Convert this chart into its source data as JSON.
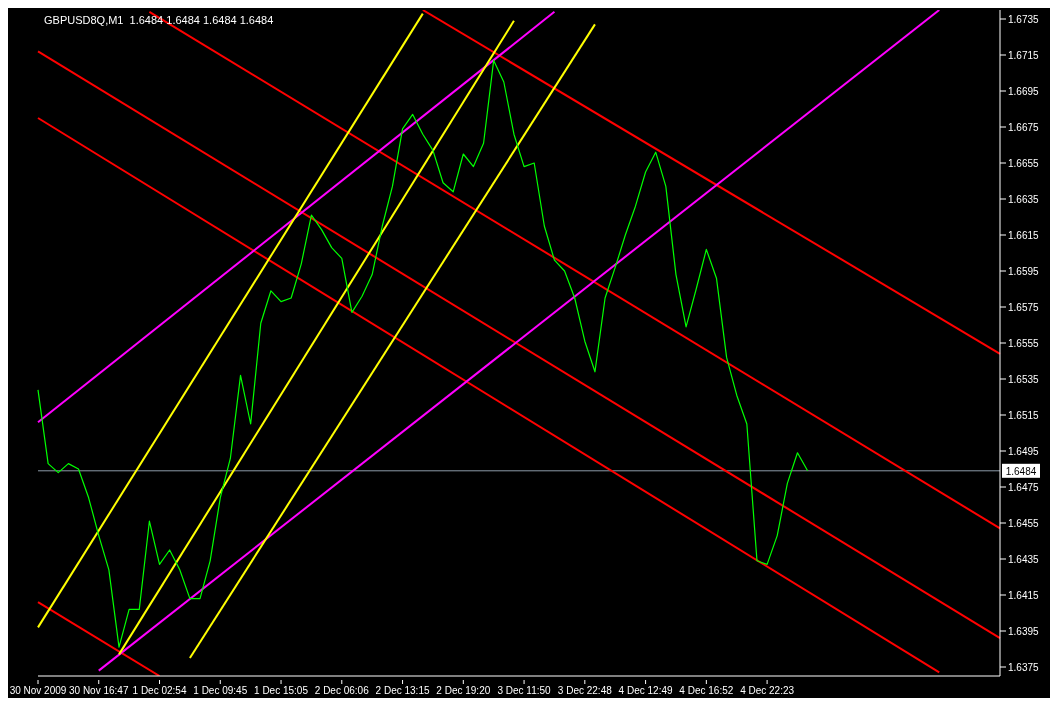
{
  "chart_data": {
    "type": "line",
    "title": "GBPUSD8Q,M1  1.6484 1.6484 1.6484 1.6484",
    "categories": [
      "30 Nov 2009",
      null,
      null,
      null,
      null,
      null,
      "30 Nov 16:47",
      null,
      null,
      null,
      null,
      null,
      "1 Dec 02:54",
      null,
      null,
      null,
      null,
      null,
      "1 Dec 09:45",
      null,
      null,
      null,
      null,
      null,
      "1 Dec 15:05",
      null,
      null,
      null,
      null,
      null,
      "2 Dec 06:06",
      null,
      null,
      null,
      null,
      null,
      "2 Dec 13:15",
      null,
      null,
      null,
      null,
      null,
      "2 Dec 19:20",
      null,
      null,
      null,
      null,
      null,
      "3 Dec 11:50",
      null,
      null,
      null,
      null,
      null,
      "3 Dec 22:48",
      null,
      null,
      null,
      null,
      null,
      "4 Dec 12:49",
      null,
      null,
      null,
      null,
      null,
      "4 Dec 16:52",
      null,
      null,
      null,
      null,
      null,
      "4 Dec 22:23",
      null,
      null,
      null,
      null,
      null,
      null,
      null,
      null,
      null,
      null,
      null,
      null,
      null,
      null,
      null,
      null,
      null,
      null,
      null,
      null,
      null,
      null,
      null
    ],
    "ylim": [
      1.637,
      1.674
    ],
    "yticks": [
      1.6375,
      1.6395,
      1.6415,
      1.6435,
      1.6455,
      1.6475,
      1.6495,
      1.6515,
      1.6535,
      1.6555,
      1.6575,
      1.6595,
      1.6615,
      1.6635,
      1.6655,
      1.6675,
      1.6695,
      1.6715,
      1.6735
    ],
    "ref_lines": [
      {
        "axis": "y",
        "value": 1.6484,
        "label": "1.6484",
        "color": "#8c9aa8"
      }
    ],
    "series": [
      {
        "type": "line",
        "color": "#00ff00",
        "values": [
          1.6529,
          1.6488,
          1.6483,
          1.6488,
          1.6485,
          1.6469,
          1.6448,
          1.6429,
          1.6386,
          1.6407,
          1.6407,
          1.6456,
          1.6432,
          1.644,
          1.6429,
          1.6413,
          1.6413,
          1.6434,
          1.6469,
          1.6491,
          1.6537,
          1.651,
          1.6566,
          1.6584,
          1.6578,
          1.658,
          1.6599,
          1.6626,
          1.6618,
          1.6608,
          1.6602,
          1.6572,
          1.6581,
          1.6593,
          1.662,
          1.6642,
          1.6674,
          1.6682,
          1.6671,
          1.6662,
          1.6644,
          1.6639,
          1.666,
          1.6653,
          1.6666,
          1.6712,
          1.67,
          1.6671,
          1.6653,
          1.6655,
          1.662,
          1.6601,
          1.6595,
          1.658,
          1.6556,
          1.6539,
          1.658,
          1.6597,
          1.6615,
          1.6631,
          1.665,
          1.6661,
          1.6642,
          1.6593,
          1.6564,
          1.6585,
          1.6607,
          1.6591,
          1.6547,
          1.6526,
          1.651,
          1.6434,
          1.6432,
          1.6448,
          1.6477,
          1.6494,
          1.6484,
          null,
          null,
          null,
          null,
          null,
          null,
          null,
          null,
          null,
          null,
          null,
          null,
          null,
          null,
          null,
          null,
          null,
          null,
          null
        ]
      },
      {
        "type": "line",
        "color": "#ff0000",
        "values": [
          null,
          null,
          null,
          null,
          null,
          null,
          null,
          null,
          null,
          null,
          null,
          null,
          null,
          null,
          null,
          null,
          null,
          null,
          null,
          null,
          null,
          null,
          null,
          null,
          null,
          null,
          null,
          null,
          null,
          null,
          null,
          null,
          null,
          null,
          null,
          null,
          null,
          null,
          1.674,
          null,
          null,
          null,
          null,
          null,
          null,
          null,
          null,
          null,
          null,
          null,
          null,
          null,
          null,
          null,
          null,
          null,
          null,
          null,
          null,
          null,
          null,
          null,
          null,
          null,
          null,
          null,
          null,
          null,
          null,
          null,
          null,
          null,
          null,
          null,
          null,
          null,
          null,
          null,
          null,
          null,
          null,
          null,
          null,
          null,
          null,
          null,
          null,
          null,
          null,
          null,
          null,
          null,
          null,
          null,
          null,
          1.6549
        ]
      },
      {
        "type": "line",
        "color": "#ff0000",
        "values": [
          null,
          null,
          null,
          null,
          null,
          null,
          null,
          null,
          null,
          null,
          null,
          1.6739,
          null,
          null,
          null,
          null,
          null,
          null,
          null,
          null,
          null,
          null,
          null,
          null,
          null,
          null,
          null,
          null,
          null,
          null,
          null,
          null,
          null,
          null,
          null,
          null,
          null,
          null,
          null,
          null,
          null,
          null,
          null,
          null,
          null,
          null,
          null,
          null,
          null,
          null,
          null,
          null,
          null,
          null,
          null,
          null,
          null,
          null,
          null,
          null,
          null,
          null,
          null,
          null,
          null,
          null,
          null,
          null,
          null,
          null,
          null,
          null,
          null,
          null,
          null,
          null,
          null,
          null,
          null,
          null,
          null,
          null,
          null,
          null,
          null,
          null,
          null,
          null,
          null,
          null,
          null,
          null,
          null,
          null,
          null,
          1.6452
        ]
      },
      {
        "type": "line",
        "color": "#ff0000",
        "values": [
          1.6717,
          null,
          null,
          null,
          null,
          null,
          null,
          null,
          null,
          null,
          null,
          null,
          null,
          null,
          null,
          null,
          null,
          null,
          null,
          null,
          null,
          null,
          null,
          null,
          null,
          null,
          null,
          null,
          null,
          null,
          null,
          null,
          null,
          null,
          null,
          null,
          null,
          null,
          null,
          null,
          null,
          null,
          null,
          null,
          null,
          null,
          null,
          null,
          null,
          null,
          null,
          null,
          null,
          null,
          null,
          null,
          null,
          null,
          null,
          null,
          null,
          null,
          null,
          null,
          null,
          null,
          null,
          null,
          null,
          null,
          null,
          null,
          null,
          null,
          null,
          null,
          null,
          null,
          null,
          null,
          null,
          null,
          null,
          null,
          null,
          null,
          null,
          null,
          null,
          null,
          null,
          null,
          null,
          null,
          null,
          1.6391
        ]
      },
      {
        "type": "line",
        "color": "#ff0000",
        "values": [
          1.668,
          null,
          null,
          null,
          null,
          null,
          null,
          null,
          null,
          null,
          null,
          null,
          null,
          null,
          null,
          null,
          null,
          null,
          null,
          null,
          null,
          null,
          null,
          null,
          null,
          null,
          null,
          null,
          null,
          null,
          null,
          null,
          null,
          null,
          null,
          null,
          null,
          null,
          null,
          null,
          null,
          null,
          null,
          null,
          null,
          null,
          null,
          null,
          null,
          null,
          null,
          null,
          null,
          null,
          null,
          null,
          null,
          null,
          null,
          null,
          null,
          null,
          null,
          null,
          null,
          null,
          null,
          null,
          null,
          null,
          null,
          null,
          null,
          null,
          null,
          null,
          null,
          null,
          null,
          null,
          null,
          null,
          null,
          null,
          null,
          null,
          null,
          null,
          null,
          1.6372,
          null,
          null,
          null,
          null,
          null,
          null
        ]
      },
      {
        "type": "line",
        "color": "#ff0000",
        "values": [
          1.6411,
          null,
          null,
          null,
          null,
          null,
          null,
          null,
          null,
          null,
          null,
          null,
          1.637,
          null,
          null,
          null,
          null,
          null,
          null,
          null,
          null,
          null,
          null,
          null,
          null,
          null,
          null,
          null,
          null,
          null,
          null,
          null,
          null,
          null,
          null,
          null,
          null,
          null,
          null,
          null,
          null,
          null,
          null,
          null,
          null,
          null,
          null,
          null,
          null,
          null,
          null,
          null,
          null,
          null,
          null,
          null,
          null,
          null,
          null,
          null,
          null,
          null,
          null,
          null,
          null,
          null,
          null,
          null,
          null,
          null,
          null,
          null,
          null,
          null,
          null,
          null,
          null,
          null,
          null,
          null,
          null,
          null,
          null,
          null,
          null,
          null,
          null,
          null,
          null,
          null,
          null,
          null,
          null,
          null,
          null,
          null
        ]
      },
      {
        "type": "line",
        "color": "#ff00ff",
        "values": [
          1.6511,
          null,
          null,
          null,
          null,
          null,
          null,
          null,
          null,
          null,
          null,
          null,
          null,
          null,
          null,
          null,
          null,
          null,
          null,
          null,
          null,
          null,
          null,
          null,
          null,
          null,
          null,
          null,
          null,
          null,
          null,
          null,
          null,
          null,
          null,
          null,
          null,
          null,
          null,
          null,
          null,
          null,
          null,
          null,
          null,
          null,
          null,
          null,
          null,
          null,
          null,
          1.6739,
          null,
          null,
          null,
          null,
          null,
          null,
          null,
          null,
          null,
          null,
          null,
          null,
          null,
          null,
          null,
          null,
          null,
          null,
          null,
          null,
          null,
          null,
          null,
          null,
          null,
          null,
          null,
          null,
          null,
          null,
          null,
          null,
          null,
          null,
          null,
          null,
          null,
          null,
          null,
          null,
          null,
          null,
          null,
          null
        ]
      },
      {
        "type": "line",
        "color": "#ff00ff",
        "values": [
          null,
          null,
          null,
          null,
          null,
          null,
          1.6373,
          null,
          null,
          null,
          null,
          null,
          null,
          null,
          null,
          null,
          null,
          null,
          null,
          null,
          null,
          null,
          null,
          null,
          null,
          null,
          null,
          null,
          null,
          null,
          null,
          null,
          null,
          null,
          null,
          null,
          null,
          null,
          null,
          null,
          null,
          null,
          null,
          null,
          null,
          null,
          null,
          null,
          null,
          null,
          null,
          null,
          null,
          null,
          null,
          null,
          null,
          null,
          null,
          null,
          null,
          null,
          null,
          null,
          null,
          null,
          null,
          null,
          null,
          null,
          null,
          null,
          null,
          null,
          null,
          null,
          null,
          null,
          null,
          null,
          null,
          null,
          null,
          null,
          null,
          null,
          null,
          null,
          null,
          1.674,
          null,
          null,
          null,
          null,
          null,
          null
        ]
      },
      {
        "type": "line",
        "color": "#ffff00",
        "values": [
          1.6397,
          null,
          null,
          null,
          null,
          null,
          null,
          null,
          null,
          null,
          null,
          null,
          null,
          null,
          null,
          null,
          null,
          null,
          null,
          null,
          null,
          null,
          null,
          null,
          null,
          null,
          null,
          null,
          null,
          null,
          null,
          null,
          null,
          null,
          null,
          null,
          null,
          null,
          1.6738,
          null,
          null,
          null,
          null,
          null,
          null,
          null,
          null,
          null,
          null,
          null,
          null,
          null,
          null,
          null,
          null,
          null,
          null,
          null,
          null,
          null,
          null,
          null,
          null,
          null,
          null,
          null,
          null,
          null,
          null,
          null,
          null,
          null,
          null,
          null,
          null,
          null,
          null,
          null,
          null,
          null,
          null,
          null,
          null,
          null,
          null,
          null,
          null,
          null,
          null,
          null,
          null,
          null,
          null,
          null,
          null,
          null
        ]
      },
      {
        "type": "line",
        "color": "#ffff00",
        "values": [
          null,
          null,
          null,
          null,
          null,
          null,
          null,
          null,
          1.6382,
          null,
          null,
          null,
          null,
          null,
          null,
          null,
          null,
          null,
          null,
          null,
          null,
          null,
          null,
          null,
          null,
          null,
          null,
          null,
          null,
          null,
          null,
          null,
          null,
          null,
          null,
          null,
          null,
          null,
          null,
          null,
          null,
          null,
          null,
          null,
          null,
          null,
          null,
          1.6734,
          null,
          null,
          null,
          null,
          null,
          null,
          null,
          null,
          null,
          null,
          null,
          null,
          null,
          null,
          null,
          null,
          null,
          null,
          null,
          null,
          null,
          null,
          null,
          null,
          null,
          null,
          null,
          null,
          null,
          null,
          null,
          null,
          null,
          null,
          null,
          null,
          null,
          null,
          null,
          null,
          null,
          null,
          null,
          null,
          null,
          null,
          null,
          null
        ]
      },
      {
        "type": "line",
        "color": "#ffff00",
        "values": [
          null,
          null,
          null,
          null,
          null,
          null,
          null,
          null,
          null,
          null,
          null,
          null,
          null,
          null,
          null,
          1.638,
          null,
          null,
          null,
          null,
          null,
          null,
          null,
          null,
          null,
          null,
          null,
          null,
          null,
          null,
          null,
          null,
          null,
          null,
          null,
          null,
          null,
          null,
          null,
          null,
          null,
          null,
          null,
          null,
          null,
          null,
          null,
          null,
          null,
          null,
          null,
          null,
          null,
          null,
          null,
          1.6732,
          null,
          null,
          null,
          null,
          null,
          null,
          null,
          null,
          null,
          null,
          null,
          null,
          null,
          null,
          null,
          null,
          null,
          null,
          null,
          null,
          null,
          null,
          null,
          null,
          null,
          null,
          null,
          null,
          null,
          null,
          null,
          null,
          null,
          null,
          null,
          null,
          null,
          null,
          null,
          null
        ]
      }
    ]
  }
}
